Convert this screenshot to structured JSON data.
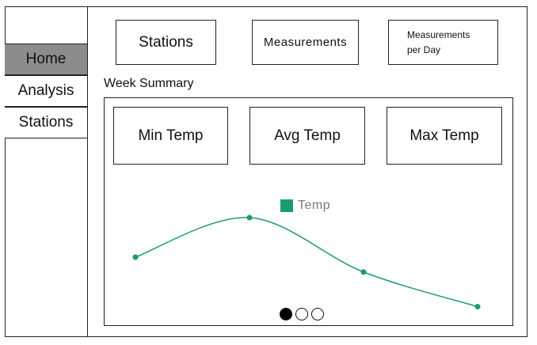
{
  "sidebar": {
    "items": [
      {
        "label": "Home",
        "active": true
      },
      {
        "label": "Analysis",
        "active": false
      },
      {
        "label": "Stations",
        "active": false
      }
    ]
  },
  "top_cards": {
    "stations": "Stations",
    "measurements": "Measurements",
    "per_day_line1": "Measurements",
    "per_day_line2": "per Day"
  },
  "summary": {
    "title": "Week Summary",
    "min_temp": "Min Temp",
    "avg_temp": "Avg Temp",
    "max_temp": "Max Temp"
  },
  "chart_data": {
    "type": "line",
    "series": [
      {
        "name": "Temp",
        "values": [
          0.4,
          0.8,
          0.25,
          -0.1
        ]
      }
    ],
    "color": "#1b9a72",
    "ylim": [
      -0.2,
      1.0
    ]
  },
  "pager": {
    "pages": 3,
    "current": 0
  }
}
